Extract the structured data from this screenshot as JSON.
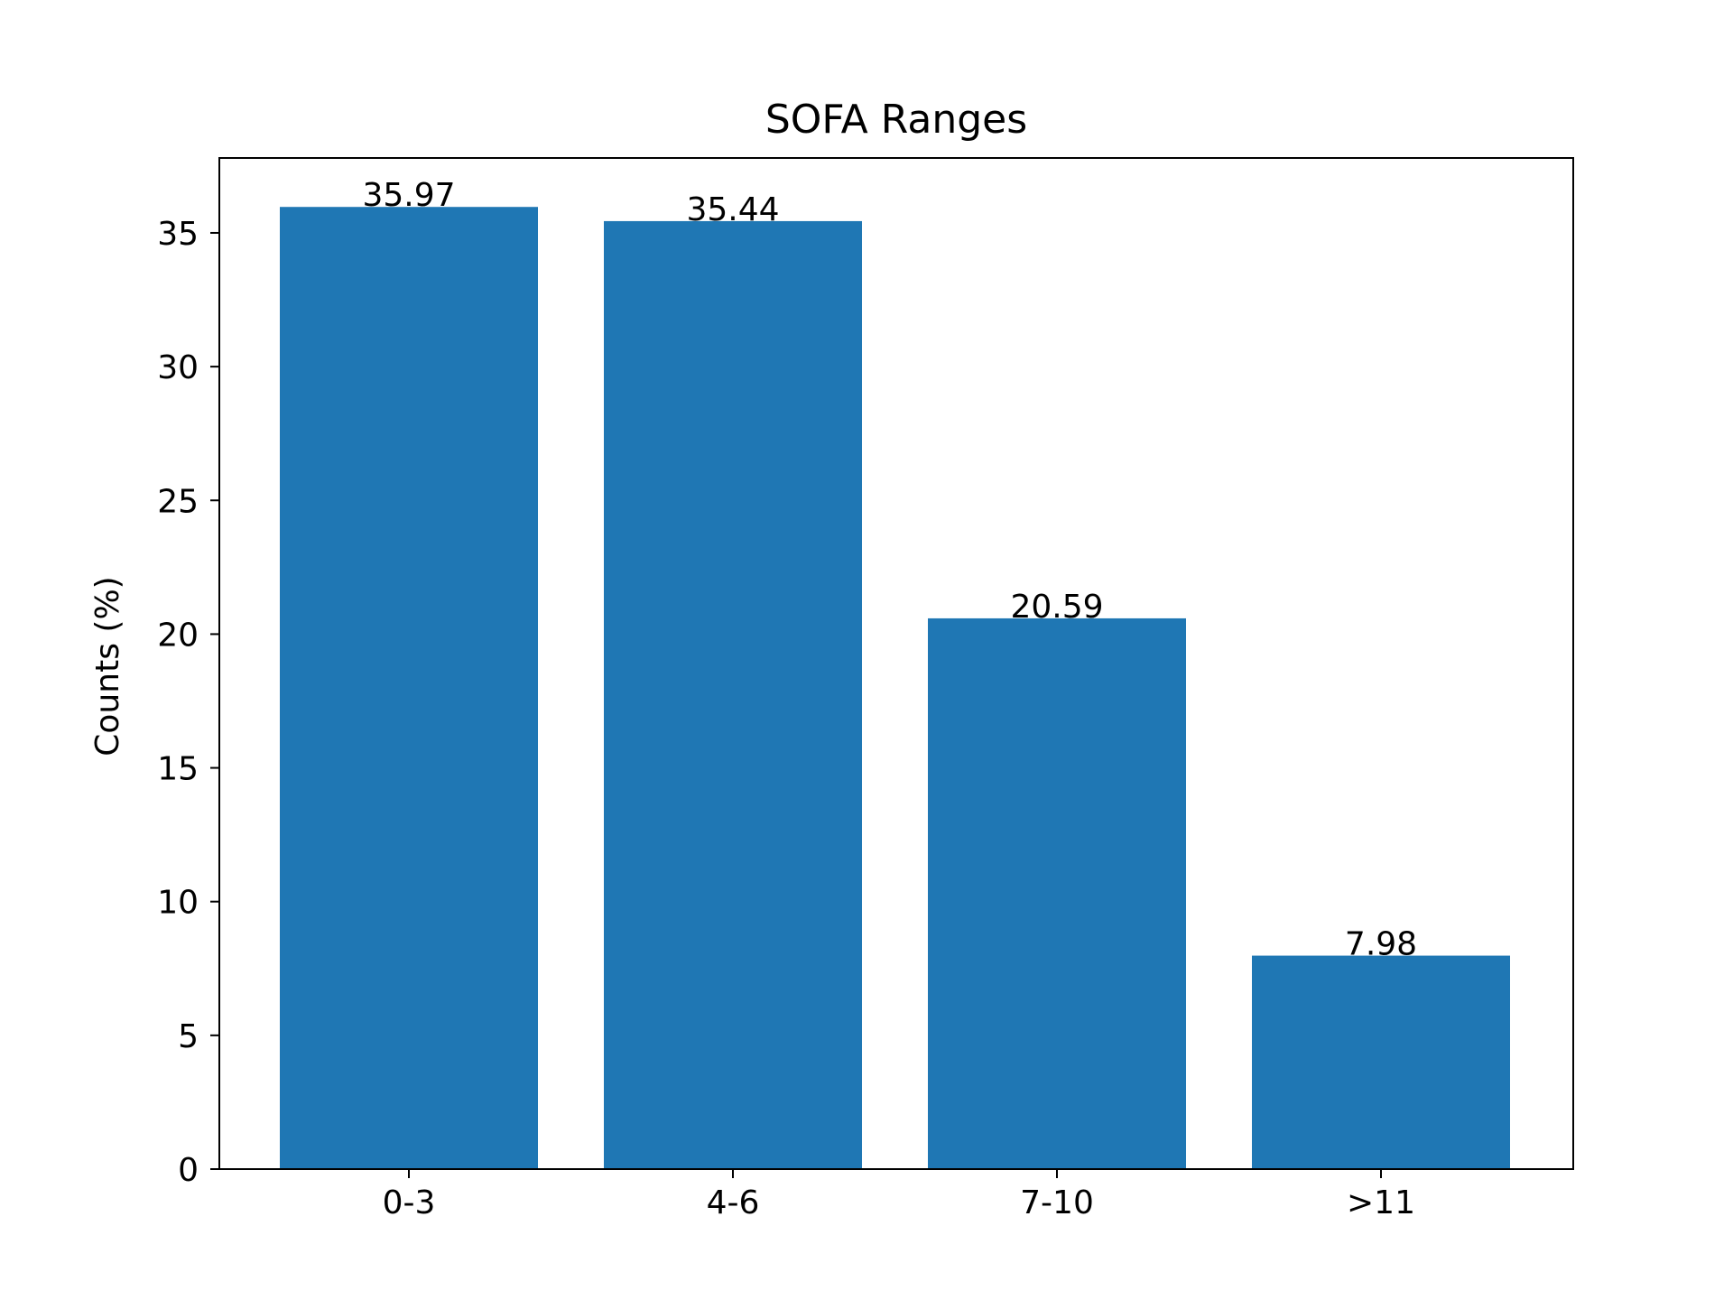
{
  "chart_data": {
    "type": "bar",
    "title": "SOFA Ranges",
    "xlabel": "",
    "ylabel": "Counts (%)",
    "categories": [
      "0-3",
      "4-6",
      "7-10",
      ">11"
    ],
    "values": [
      35.97,
      35.44,
      20.59,
      7.98
    ],
    "data_labels": [
      "35.97",
      "35.44",
      "20.59",
      "7.98"
    ],
    "yticks": [
      0,
      5,
      10,
      15,
      20,
      25,
      30,
      35
    ],
    "ylim": [
      0,
      37.8
    ],
    "grid": false,
    "bar_color": "#1f77b4"
  }
}
